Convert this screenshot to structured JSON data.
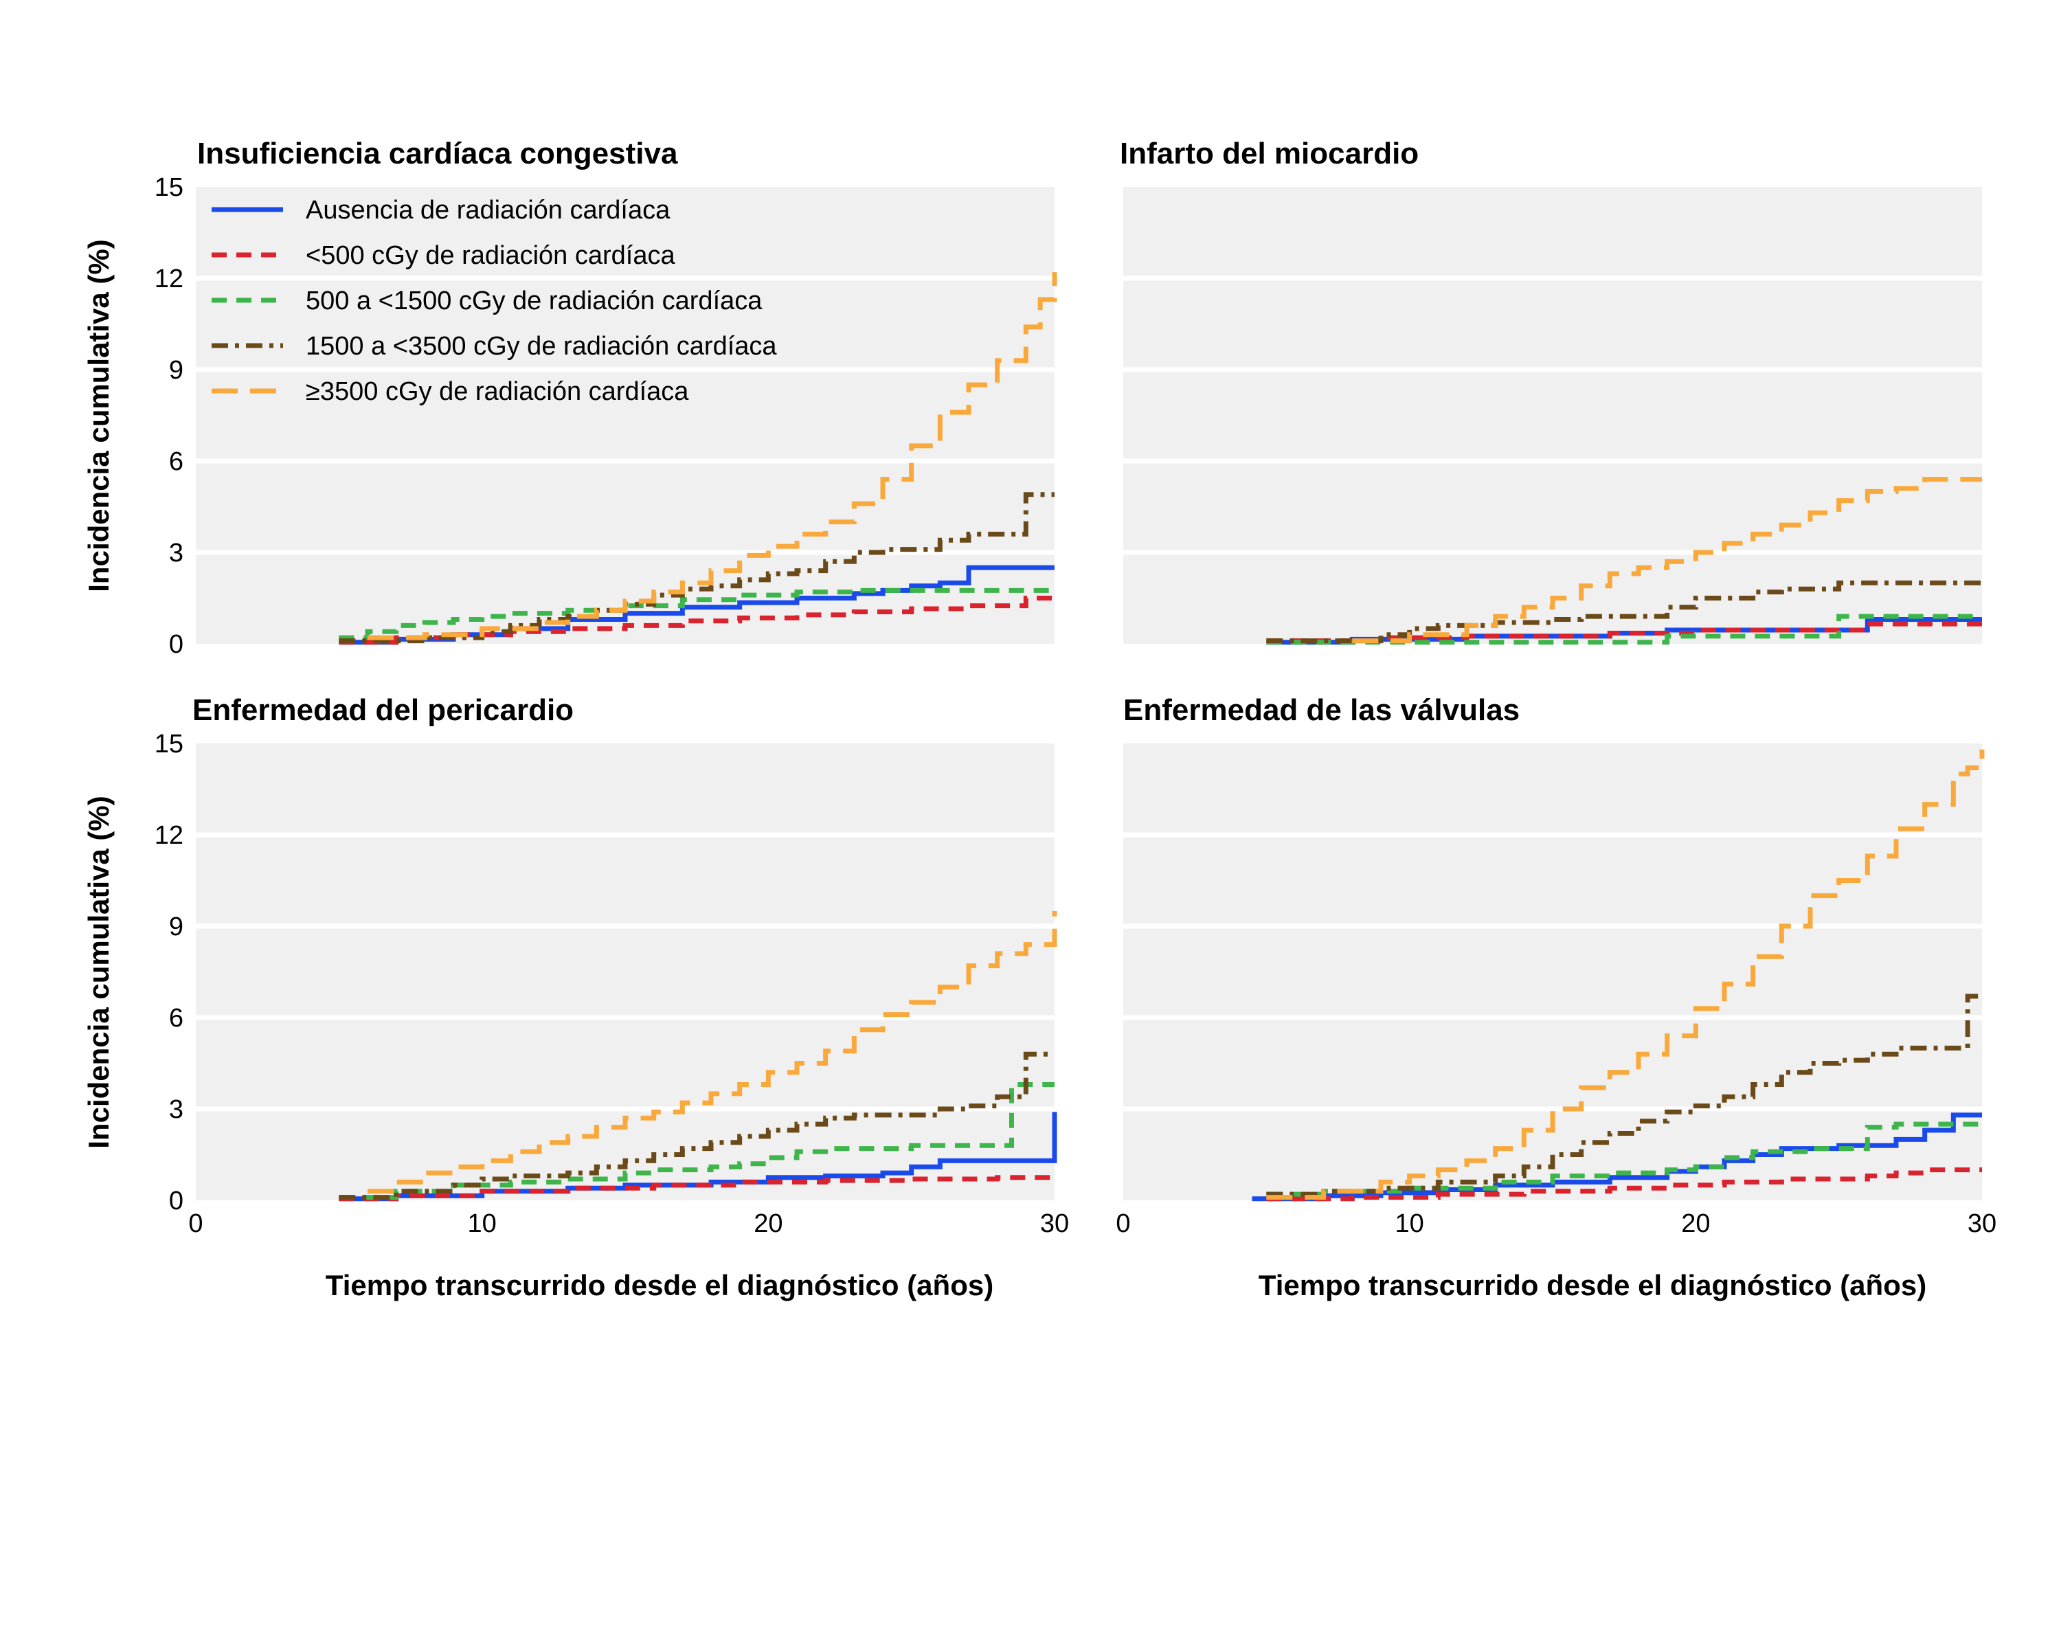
{
  "colors": {
    "none": "#1a4bea",
    "lt500": "#d9232e",
    "500to1500": "#3db54a",
    "1500to3500": "#6b4a1a",
    "ge3500": "#f9a93c",
    "panel_bg": "#f0f0f0",
    "grid": "#ffffff"
  },
  "legend": [
    {
      "key": "none",
      "label": "Ausencia de radiación cardíaca",
      "dash": "solid"
    },
    {
      "key": "lt500",
      "label": "<500 cGy de radiación cardíaca",
      "dash": "dash"
    },
    {
      "key": "500to1500",
      "label": "500 a <1500 cGy de radiación cardíaca",
      "dash": "dash"
    },
    {
      "key": "1500to3500",
      "label": "1500 a <3500 cGy de radiación cardíaca",
      "dash": "dashdot"
    },
    {
      "key": "ge3500",
      "label": "≥3500 cGy de radiación cardíaca",
      "dash": "longdash"
    }
  ],
  "chart_data": [
    {
      "type": "line",
      "step": true,
      "title": "Insuficiencia cardíaca congestiva",
      "ylabel": "Incidencia cumulativa  (%)",
      "xlabel": "",
      "xlim": [
        0,
        30
      ],
      "ylim": [
        0,
        15
      ],
      "yticks": [
        "0",
        "3",
        "6",
        "9",
        "12",
        "15"
      ],
      "xticks": [],
      "grid": true,
      "legend": "top-left",
      "series": [
        {
          "key": "none",
          "x": [
            5,
            7,
            9,
            11,
            13,
            15,
            17,
            19,
            21,
            23,
            24,
            25,
            26,
            27,
            30
          ],
          "y": [
            0.05,
            0.15,
            0.3,
            0.5,
            0.8,
            1.0,
            1.2,
            1.35,
            1.5,
            1.65,
            1.75,
            1.9,
            2.0,
            2.5,
            2.5
          ]
        },
        {
          "key": "lt500",
          "x": [
            5,
            7,
            9,
            11,
            13,
            15,
            17,
            19,
            21,
            23,
            25,
            27,
            29,
            30
          ],
          "y": [
            0.05,
            0.2,
            0.3,
            0.4,
            0.5,
            0.6,
            0.75,
            0.85,
            0.95,
            1.05,
            1.15,
            1.25,
            1.5,
            1.5
          ]
        },
        {
          "key": "500to1500",
          "x": [
            5,
            6,
            7,
            8,
            9,
            10,
            11,
            13,
            15,
            17,
            19,
            21,
            23,
            25,
            27,
            30
          ],
          "y": [
            0.2,
            0.4,
            0.6,
            0.7,
            0.8,
            0.9,
            1.0,
            1.1,
            1.25,
            1.45,
            1.6,
            1.7,
            1.75,
            1.75,
            1.75,
            1.75
          ]
        },
        {
          "key": "1500to3500",
          "x": [
            5,
            8,
            10,
            11,
            12,
            13,
            14,
            15,
            16,
            17,
            18,
            19,
            20,
            21,
            22,
            23,
            24,
            25,
            26,
            27,
            28,
            29,
            30
          ],
          "y": [
            0.1,
            0.2,
            0.4,
            0.6,
            0.8,
            0.9,
            1.1,
            1.3,
            1.6,
            1.8,
            1.9,
            2.1,
            2.3,
            2.4,
            2.7,
            3.0,
            3.1,
            3.1,
            3.4,
            3.6,
            3.6,
            4.9,
            4.9
          ]
        },
        {
          "key": "ge3500",
          "x": [
            6,
            8,
            10,
            12,
            13,
            14,
            15,
            16,
            17,
            18,
            19,
            20,
            21,
            22,
            23,
            24,
            25,
            26,
            27,
            28,
            29,
            29.5,
            30
          ],
          "y": [
            0.2,
            0.3,
            0.5,
            0.7,
            0.9,
            1.1,
            1.4,
            1.7,
            2.0,
            2.4,
            2.9,
            3.2,
            3.6,
            4.0,
            4.6,
            5.4,
            6.5,
            7.6,
            8.5,
            9.3,
            10.4,
            11.3,
            12.2
          ]
        }
      ]
    },
    {
      "type": "line",
      "step": true,
      "title": "Infarto del miocardio",
      "ylabel": "",
      "xlabel": "",
      "xlim": [
        0,
        30
      ],
      "ylim": [
        0,
        15
      ],
      "yticks": [],
      "xticks": [],
      "grid": true,
      "series": [
        {
          "key": "none",
          "x": [
            5,
            8,
            12,
            17,
            19,
            26,
            30
          ],
          "y": [
            0.05,
            0.15,
            0.25,
            0.35,
            0.45,
            0.8,
            0.8
          ]
        },
        {
          "key": "lt500",
          "x": [
            5,
            9,
            12,
            17,
            20,
            26,
            30
          ],
          "y": [
            0.1,
            0.2,
            0.25,
            0.35,
            0.45,
            0.65,
            0.65
          ]
        },
        {
          "key": "500to1500",
          "x": [
            5,
            8,
            15,
            18.5,
            19,
            25,
            30
          ],
          "y": [
            0.05,
            0.05,
            0.05,
            0.05,
            0.25,
            0.9,
            0.9
          ]
        },
        {
          "key": "1500to3500",
          "x": [
            5,
            9,
            10,
            11,
            13,
            15,
            16,
            19,
            20,
            22,
            23,
            25,
            27,
            30
          ],
          "y": [
            0.1,
            0.3,
            0.5,
            0.6,
            0.7,
            0.8,
            0.9,
            1.2,
            1.5,
            1.7,
            1.8,
            2.0,
            2.0,
            2.0
          ]
        },
        {
          "key": "ge3500",
          "x": [
            8,
            10,
            12,
            13,
            14,
            15,
            16,
            17,
            18,
            19,
            20,
            21,
            22,
            23,
            24,
            25,
            26,
            27,
            28,
            30
          ],
          "y": [
            0.1,
            0.3,
            0.6,
            0.9,
            1.2,
            1.5,
            1.9,
            2.3,
            2.5,
            2.7,
            3.0,
            3.3,
            3.6,
            3.9,
            4.3,
            4.7,
            5.0,
            5.1,
            5.4,
            5.4
          ]
        }
      ]
    },
    {
      "type": "line",
      "step": true,
      "title": "Enfermedad del pericardio",
      "ylabel": "Incidencia cumulativa  (%)",
      "xlabel": "",
      "xlim": [
        0,
        30
      ],
      "ylim": [
        0,
        15
      ],
      "yticks": [
        "0",
        "3",
        "6",
        "9",
        "12",
        "15"
      ],
      "xticks": [
        "0",
        "10",
        "20",
        "30"
      ],
      "grid": true,
      "series": [
        {
          "key": "none",
          "x": [
            5,
            7,
            10,
            13,
            15,
            18,
            20,
            22,
            24,
            25,
            26,
            29.9,
            30
          ],
          "y": [
            0.05,
            0.15,
            0.3,
            0.4,
            0.5,
            0.6,
            0.75,
            0.8,
            0.9,
            1.1,
            1.3,
            1.3,
            2.9
          ]
        },
        {
          "key": "lt500",
          "x": [
            5,
            7,
            10,
            13,
            16,
            19,
            22,
            25,
            28,
            30
          ],
          "y": [
            0.05,
            0.15,
            0.3,
            0.4,
            0.5,
            0.6,
            0.65,
            0.7,
            0.75,
            0.75
          ]
        },
        {
          "key": "500to1500",
          "x": [
            5,
            7,
            9,
            11,
            13,
            15,
            16,
            18,
            19,
            20,
            21,
            22,
            25,
            28,
            28.5,
            30
          ],
          "y": [
            0.1,
            0.3,
            0.5,
            0.6,
            0.7,
            0.9,
            1.0,
            1.1,
            1.2,
            1.4,
            1.6,
            1.7,
            1.8,
            1.8,
            3.8,
            3.8
          ]
        },
        {
          "key": "1500to3500",
          "x": [
            5,
            7,
            9,
            10,
            11,
            13,
            14,
            15,
            16,
            17,
            18,
            19,
            20,
            21,
            22,
            23,
            24,
            25,
            26,
            27,
            28,
            29,
            30
          ],
          "y": [
            0.1,
            0.3,
            0.5,
            0.7,
            0.8,
            0.9,
            1.1,
            1.3,
            1.5,
            1.7,
            1.9,
            2.1,
            2.3,
            2.5,
            2.7,
            2.8,
            2.8,
            2.8,
            3.0,
            3.1,
            3.4,
            4.8,
            4.8
          ]
        },
        {
          "key": "ge3500",
          "x": [
            6,
            7,
            8,
            9,
            10,
            11,
            12,
            13,
            14,
            15,
            16,
            17,
            18,
            19,
            20,
            21,
            22,
            23,
            24,
            25,
            26,
            27,
            28,
            29,
            29.5,
            30
          ],
          "y": [
            0.3,
            0.6,
            0.9,
            1.1,
            1.3,
            1.6,
            1.9,
            2.1,
            2.4,
            2.7,
            2.9,
            3.2,
            3.5,
            3.8,
            4.2,
            4.5,
            4.9,
            5.6,
            6.1,
            6.5,
            7.0,
            7.7,
            8.1,
            8.4,
            8.4,
            9.5
          ]
        }
      ]
    },
    {
      "type": "line",
      "step": true,
      "title": "Enfermedad de las válvulas",
      "ylabel": "",
      "xlabel": "Tiempo transcurrido desde el diagnóstico (años)",
      "xlim": [
        0,
        30
      ],
      "ylim": [
        0,
        15
      ],
      "yticks": [],
      "xticks": [
        "0",
        "10",
        "20",
        "30"
      ],
      "grid": true,
      "series": [
        {
          "key": "none",
          "x": [
            4.5,
            7,
            9,
            11,
            13,
            15,
            17,
            19,
            20,
            21,
            22,
            23,
            25,
            26,
            27,
            28,
            29,
            30
          ],
          "y": [
            0.05,
            0.15,
            0.25,
            0.35,
            0.5,
            0.6,
            0.75,
            0.95,
            1.1,
            1.3,
            1.5,
            1.7,
            1.8,
            1.8,
            2.0,
            2.3,
            2.8,
            2.8
          ]
        },
        {
          "key": "lt500",
          "x": [
            5,
            8,
            11,
            14,
            17,
            19,
            21,
            23,
            26,
            27,
            28,
            30
          ],
          "y": [
            0.05,
            0.1,
            0.2,
            0.3,
            0.4,
            0.5,
            0.6,
            0.7,
            0.8,
            0.9,
            1.0,
            1.0
          ]
        },
        {
          "key": "500to1500",
          "x": [
            5,
            7,
            10,
            13,
            15,
            17,
            19,
            20,
            21,
            22,
            24,
            25,
            26,
            27,
            30
          ],
          "y": [
            0.2,
            0.3,
            0.4,
            0.6,
            0.8,
            0.9,
            1.0,
            1.1,
            1.4,
            1.6,
            1.7,
            1.7,
            2.4,
            2.5,
            2.5
          ]
        },
        {
          "key": "1500to3500",
          "x": [
            5,
            7,
            9,
            11,
            13,
            14,
            15,
            16,
            17,
            18,
            19,
            20,
            21,
            22,
            23,
            24,
            25,
            26,
            27,
            28,
            29.5,
            30
          ],
          "y": [
            0.2,
            0.3,
            0.4,
            0.6,
            0.8,
            1.1,
            1.5,
            1.9,
            2.2,
            2.6,
            2.9,
            3.1,
            3.4,
            3.8,
            4.2,
            4.5,
            4.6,
            4.8,
            5.0,
            5.0,
            6.7,
            6.7
          ]
        },
        {
          "key": "ge3500",
          "x": [
            5,
            7,
            9,
            10,
            11,
            12,
            13,
            14,
            15,
            16,
            17,
            18,
            19,
            20,
            21,
            22,
            23,
            24,
            25,
            26,
            27,
            28,
            29,
            29.5,
            30
          ],
          "y": [
            0.1,
            0.3,
            0.6,
            0.8,
            1.0,
            1.3,
            1.7,
            2.3,
            3.0,
            3.7,
            4.2,
            4.8,
            5.4,
            6.3,
            7.1,
            8.0,
            9.0,
            10.0,
            10.5,
            11.3,
            12.2,
            13.0,
            14.0,
            14.2,
            14.8
          ]
        }
      ]
    }
  ]
}
